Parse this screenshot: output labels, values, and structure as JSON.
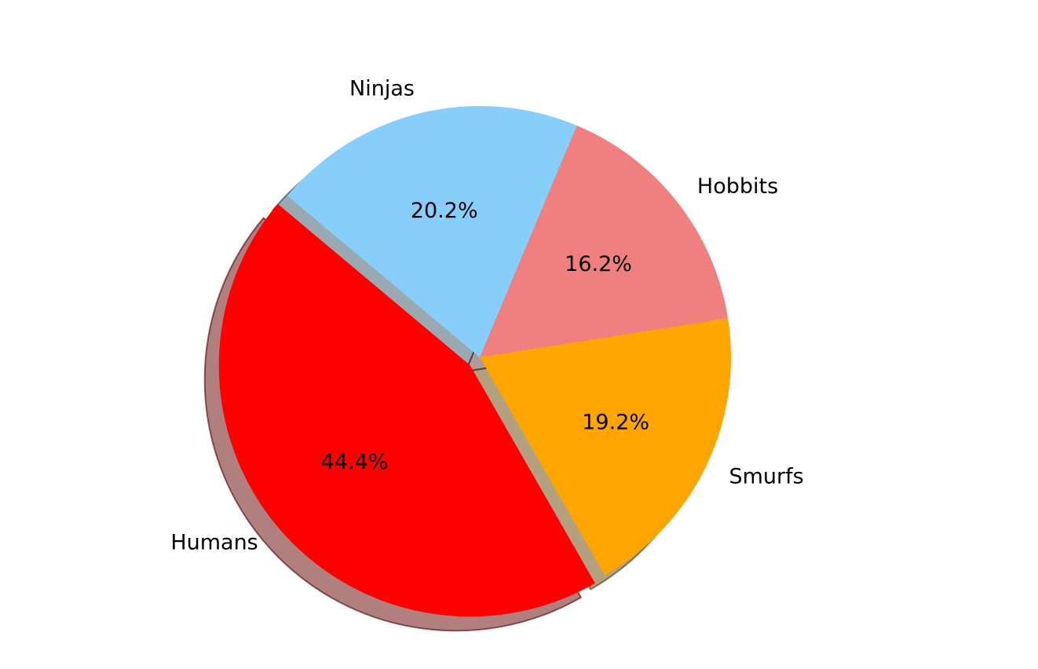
{
  "chart_data": {
    "type": "pie",
    "title": "",
    "categories": [
      "Humans",
      "Smurfs",
      "Hobbits",
      "Ninjas"
    ],
    "values": [
      44.4,
      19.2,
      16.2,
      20.2
    ],
    "labels": [
      "44.4%",
      "19.2%",
      "16.2%",
      "20.2%"
    ],
    "colors": [
      "#ff0000",
      "#ffa500",
      "#f08080",
      "#87cefa"
    ],
    "exploded": [
      "Humans"
    ],
    "shadow": true,
    "legend": "none"
  }
}
